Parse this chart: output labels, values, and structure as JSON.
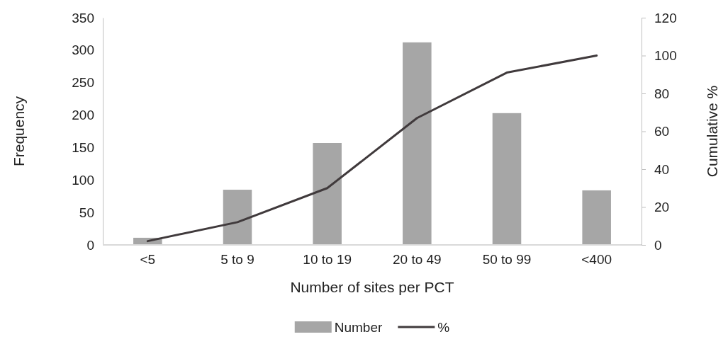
{
  "chart_data": {
    "type": "bar",
    "xlabel": "Number  of sites per PCT",
    "ylabel": "Frequency",
    "y2label": "Cumulative  %",
    "categories": [
      "<5",
      "5 to 9",
      "10 to 19",
      "20 to 49",
      "50 to 99",
      "<400"
    ],
    "series": [
      {
        "name": "Number",
        "color": "#a6a6a6",
        "values": [
          11,
          85,
          157,
          312,
          203,
          84
        ]
      },
      {
        "name": "%",
        "type": "line",
        "axis": "y2",
        "color": "#403a3c",
        "values": [
          2,
          12,
          30,
          67,
          91,
          100
        ]
      }
    ],
    "ylim": [
      0,
      350
    ],
    "yticks": [
      0,
      50,
      100,
      150,
      200,
      250,
      300,
      350
    ],
    "y2lim": [
      0,
      120
    ],
    "y2ticks": [
      0,
      20,
      40,
      60,
      80,
      100,
      120
    ],
    "legend": "bottom",
    "grid": false
  }
}
